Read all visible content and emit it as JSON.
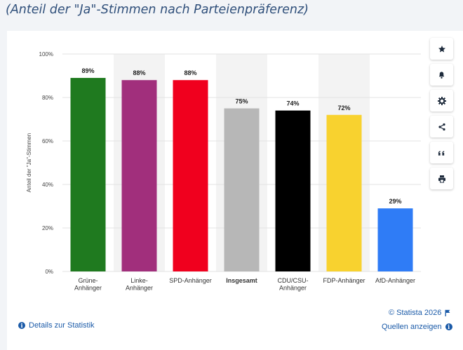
{
  "page": {
    "title": "(Anteil der \"Ja\"-Stimmen nach Parteienpräferenz)"
  },
  "toolbar": {
    "icons": [
      "star-icon",
      "bell-icon",
      "gear-icon",
      "share-icon",
      "quote-icon",
      "print-icon"
    ]
  },
  "footer": {
    "copyright": "© Statista 2026",
    "details_label": "Details zur Statistik",
    "sources_label": "Quellen anzeigen"
  },
  "colors": {
    "accent": "#1a5aa8",
    "band": "#f3f3f3",
    "grid": "#e3e3e3"
  },
  "chart_data": {
    "type": "bar",
    "ylabel": "Anteil der \"Ja\"-Stimmen",
    "ylim": [
      0,
      100
    ],
    "yticks": [
      "0%",
      "20%",
      "40%",
      "60%",
      "80%",
      "100%"
    ],
    "grid": true,
    "categories": [
      [
        "Grüne-",
        "Anhänger"
      ],
      [
        "Linke-",
        "Anhänger"
      ],
      [
        "SPD-Anhänger"
      ],
      [
        "Insgesamt"
      ],
      [
        "CDU/CSU-",
        "Anhänger"
      ],
      [
        "FDP-Anhänger"
      ],
      [
        "AfD-Anhänger"
      ]
    ],
    "values": [
      89,
      88,
      88,
      75,
      74,
      72,
      29
    ],
    "value_labels": [
      "89%",
      "88%",
      "88%",
      "75%",
      "74%",
      "72%",
      "29%"
    ],
    "bar_colors": [
      "#1f7a1f",
      "#a12f7c",
      "#f0001e",
      "#b7b7b7",
      "#000000",
      "#f8d22f",
      "#2f7cf6"
    ],
    "bold_categories": [
      3
    ]
  }
}
